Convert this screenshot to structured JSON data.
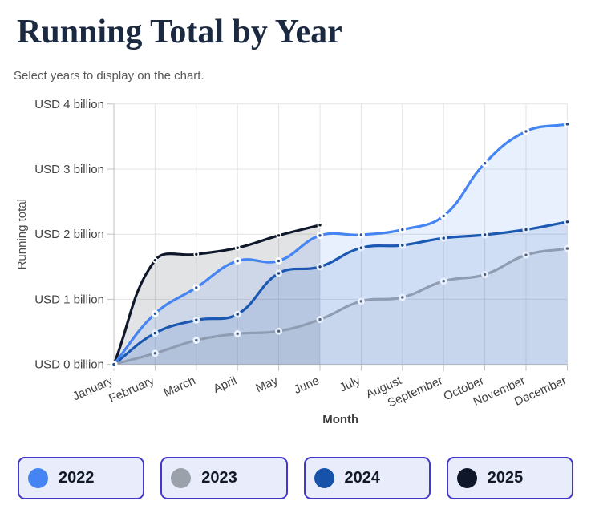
{
  "page": {
    "title": "Running Total by Year",
    "subtitle": "Select years to display on the chart."
  },
  "chart_data": {
    "type": "line",
    "x": [
      "January",
      "February",
      "March",
      "April",
      "May",
      "June",
      "July",
      "August",
      "September",
      "October",
      "November",
      "December"
    ],
    "xlabel": "Month",
    "ylabel": "Running total",
    "y_ticks": [
      "USD 0 billion",
      "USD 1 billion",
      "USD 2 billion",
      "USD 3 billion",
      "USD 4 billion"
    ],
    "ylim": [
      0,
      4
    ],
    "grid": true,
    "legend_position": "bottom",
    "series": [
      {
        "name": "2022",
        "color": "#4484f3",
        "values": [
          0,
          0.78,
          1.18,
          1.59,
          1.59,
          1.98,
          1.99,
          2.07,
          2.28,
          3.09,
          3.58,
          3.69
        ]
      },
      {
        "name": "2023",
        "color": "#9aa1aa",
        "values": [
          0,
          0.17,
          0.37,
          0.47,
          0.51,
          0.69,
          0.97,
          1.03,
          1.28,
          1.38,
          1.68,
          1.78
        ]
      },
      {
        "name": "2024",
        "color": "#1652a9",
        "values": [
          0,
          0.48,
          0.68,
          0.77,
          1.4,
          1.5,
          1.79,
          1.83,
          1.94,
          1.99,
          2.07,
          2.19
        ]
      },
      {
        "name": "2025",
        "color": "#0f172a",
        "values": [
          0,
          1.6,
          1.69,
          1.79,
          1.98,
          2.14
        ]
      }
    ]
  }
}
